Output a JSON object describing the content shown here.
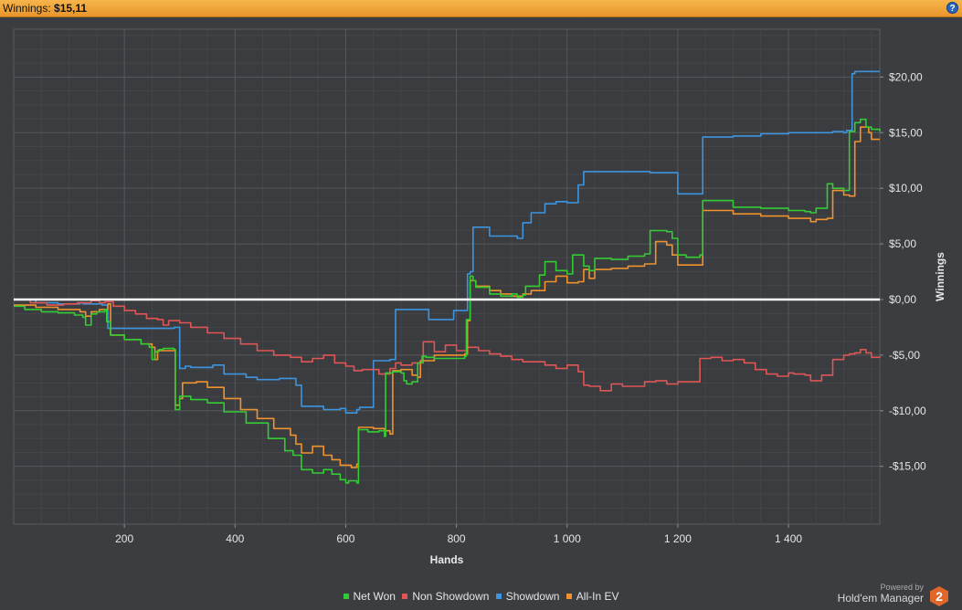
{
  "header": {
    "label": "Winnings:",
    "value": "$15,11",
    "help_icon": "help-icon"
  },
  "brand": {
    "powered_by": "Powered by",
    "name": "Hold'em Manager",
    "logo_number": "2"
  },
  "colors": {
    "background": "#3b3d40",
    "net_won": "#33cc33",
    "non_showdown": "#e05555",
    "showdown": "#3d95e0",
    "all_in_ev": "#f0922e",
    "zero_line": "#ffffff"
  },
  "chart_data": {
    "type": "line",
    "xlabel": "Hands",
    "ylabel": "Winnings",
    "xlim": [
      0,
      1565
    ],
    "ylim": [
      -20.2,
      24.3
    ],
    "xticks": [
      200,
      400,
      600,
      800,
      1000,
      1200,
      1400
    ],
    "xtick_labels": [
      "200",
      "400",
      "600",
      "800",
      "1 000",
      "1 200",
      "1 400"
    ],
    "yticks": [
      20,
      15,
      10,
      5,
      0,
      -5,
      -10,
      -15
    ],
    "ytick_labels": [
      "$20,00",
      "$15,00",
      "$10,00",
      "$5,00",
      "$0,00",
      "-$5,00",
      "-$10,00",
      "-$15,00"
    ],
    "legend_position": "bottom",
    "grid": true,
    "series": [
      {
        "name": "Net Won",
        "x": [
          0,
          20,
          50,
          80,
          110,
          125,
          130,
          140,
          150,
          165,
          168,
          175,
          200,
          230,
          245,
          250,
          255,
          262,
          270,
          290,
          292,
          300,
          320,
          350,
          380,
          420,
          460,
          490,
          505,
          520,
          540,
          560,
          575,
          590,
          600,
          605,
          620,
          623,
          640,
          660,
          670,
          672,
          685,
          700,
          705,
          710,
          720,
          730,
          738,
          745,
          760,
          790,
          815,
          818,
          825,
          830,
          835,
          860,
          880,
          900,
          910,
          920,
          925,
          950,
          960,
          980,
          1000,
          1010,
          1030,
          1040,
          1050,
          1080,
          1110,
          1140,
          1150,
          1180,
          1190,
          1200,
          1215,
          1240,
          1245,
          1300,
          1350,
          1400,
          1430,
          1440,
          1450,
          1470,
          1480,
          1500,
          1510,
          1520,
          1530,
          1540,
          1550,
          1565
        ],
        "y": [
          -0.6,
          -0.9,
          -1.1,
          -1.2,
          -1.4,
          -1.6,
          -2.3,
          -1.3,
          -1.1,
          -0.9,
          -2.0,
          -3.2,
          -3.6,
          -4.0,
          -4.3,
          -5.4,
          -4.7,
          -4.5,
          -4.4,
          -4.5,
          -9.9,
          -8.7,
          -9.0,
          -9.3,
          -10.1,
          -11.1,
          -12.5,
          -13.6,
          -14.0,
          -15.3,
          -15.6,
          -15.3,
          -15.7,
          -16.2,
          -16.5,
          -16.3,
          -16.5,
          -11.7,
          -11.9,
          -11.8,
          -12.3,
          -6.6,
          -6.5,
          -6.6,
          -7.3,
          -7.6,
          -7.4,
          -5.7,
          -5.1,
          -5.2,
          -5.3,
          -5.3,
          -5.1,
          -1.8,
          2.1,
          1.7,
          1.1,
          0.5,
          0.3,
          0.5,
          0.2,
          0.4,
          1.2,
          2.2,
          3.4,
          2.6,
          2.3,
          4.0,
          3.0,
          2.6,
          3.7,
          3.6,
          3.9,
          4.1,
          6.2,
          6.1,
          5.5,
          4.0,
          3.8,
          4.0,
          8.9,
          8.3,
          8.2,
          8.0,
          7.9,
          7.8,
          8.2,
          10.4,
          10.0,
          9.8,
          15.1,
          15.9,
          16.2,
          15.5,
          15.3,
          15.1
        ]
      },
      {
        "name": "Non Showdown",
        "x": [
          0,
          30,
          60,
          90,
          115,
          140,
          155,
          165,
          180,
          200,
          220,
          240,
          260,
          270,
          280,
          300,
          320,
          350,
          380,
          410,
          440,
          470,
          500,
          520,
          540,
          560,
          580,
          600,
          615,
          630,
          660,
          680,
          690,
          700,
          720,
          740,
          760,
          780,
          800,
          820,
          840,
          860,
          880,
          900,
          920,
          940,
          960,
          980,
          1000,
          1020,
          1030,
          1040,
          1060,
          1080,
          1100,
          1120,
          1140,
          1160,
          1180,
          1200,
          1220,
          1240,
          1260,
          1280,
          1300,
          1320,
          1340,
          1360,
          1380,
          1400,
          1410,
          1430,
          1440,
          1460,
          1480,
          1500,
          1510,
          1520,
          1530,
          1540,
          1550,
          1565
        ],
        "y": [
          0,
          -0.3,
          -0.5,
          -0.4,
          -0.3,
          -0.1,
          -0.3,
          -0.2,
          -0.6,
          -1.0,
          -1.3,
          -1.7,
          -1.8,
          -2.3,
          -1.9,
          -2.1,
          -2.5,
          -3.0,
          -3.5,
          -4.0,
          -4.6,
          -5.0,
          -5.2,
          -5.6,
          -5.3,
          -5.0,
          -5.7,
          -6.0,
          -6.4,
          -6.3,
          -6.7,
          -6.2,
          -5.7,
          -5.9,
          -5.7,
          -3.8,
          -4.7,
          -4.1,
          -4.6,
          -4.3,
          -4.6,
          -4.9,
          -5.1,
          -5.4,
          -5.6,
          -5.6,
          -5.9,
          -6.2,
          -5.9,
          -6.5,
          -7.7,
          -7.8,
          -8.2,
          -7.6,
          -7.8,
          -7.8,
          -7.4,
          -7.3,
          -7.6,
          -7.4,
          -7.4,
          -5.3,
          -5.2,
          -5.5,
          -5.4,
          -5.7,
          -6.3,
          -6.7,
          -6.9,
          -6.6,
          -6.7,
          -6.8,
          -7.3,
          -6.8,
          -5.4,
          -5.0,
          -4.9,
          -4.8,
          -4.5,
          -4.8,
          -5.2,
          -5.1
        ]
      },
      {
        "name": "Showdown",
        "x": [
          0,
          40,
          80,
          120,
          125,
          160,
          170,
          270,
          290,
          300,
          310,
          320,
          360,
          380,
          420,
          440,
          480,
          510,
          520,
          560,
          590,
          600,
          620,
          625,
          650,
          680,
          685,
          690,
          720,
          750,
          780,
          795,
          800,
          820,
          825,
          830,
          860,
          890,
          910,
          920,
          935,
          960,
          980,
          1000,
          1020,
          1030,
          1080,
          1100,
          1150,
          1190,
          1200,
          1240,
          1245,
          1300,
          1350,
          1400,
          1440,
          1480,
          1500,
          1505,
          1515,
          1520,
          1565
        ],
        "y": [
          0,
          -0.3,
          -0.4,
          -0.3,
          -0.4,
          -0.5,
          -2.6,
          -2.6,
          -2.5,
          -6.2,
          -6.0,
          -6.1,
          -5.9,
          -6.7,
          -7.0,
          -7.2,
          -7.1,
          -7.7,
          -9.6,
          -9.9,
          -9.8,
          -10.2,
          -9.9,
          -9.7,
          -5.5,
          -5.4,
          -5.4,
          -0.9,
          -0.9,
          -1.8,
          -1.8,
          -1.0,
          -1.0,
          2.3,
          2.5,
          6.5,
          5.7,
          5.7,
          5.5,
          6.9,
          7.8,
          8.6,
          8.8,
          8.7,
          10.3,
          11.5,
          11.5,
          11.5,
          11.4,
          11.4,
          9.5,
          9.5,
          14.6,
          14.7,
          14.9,
          15.0,
          15.0,
          15.1,
          15.0,
          15.2,
          20.3,
          20.5,
          20.5
        ]
      },
      {
        "name": "All-In EV",
        "x": [
          0,
          40,
          80,
          120,
          130,
          140,
          155,
          170,
          175,
          200,
          230,
          250,
          255,
          260,
          290,
          292,
          300,
          305,
          330,
          350,
          380,
          410,
          440,
          470,
          500,
          510,
          520,
          540,
          560,
          575,
          590,
          610,
          620,
          623,
          650,
          670,
          680,
          685,
          700,
          720,
          730,
          735,
          760,
          790,
          815,
          820,
          825,
          835,
          860,
          880,
          900,
          920,
          935,
          960,
          980,
          1000,
          1020,
          1030,
          1040,
          1050,
          1080,
          1110,
          1140,
          1160,
          1180,
          1190,
          1200,
          1240,
          1245,
          1300,
          1350,
          1400,
          1440,
          1450,
          1470,
          1480,
          1500,
          1510,
          1520,
          1530,
          1545,
          1550,
          1565
        ],
        "y": [
          -0.5,
          -0.7,
          -0.9,
          -1.1,
          -1.5,
          -1.1,
          -0.9,
          -0.4,
          -3.2,
          -3.6,
          -4.0,
          -4.3,
          -5.4,
          -4.6,
          -4.5,
          -9.5,
          -8.9,
          -7.5,
          -7.4,
          -7.9,
          -8.9,
          -9.9,
          -10.7,
          -11.6,
          -12.2,
          -13.0,
          -13.8,
          -13.2,
          -14.0,
          -14.4,
          -14.9,
          -15.1,
          -14.8,
          -11.5,
          -11.6,
          -11.8,
          -12.1,
          -6.4,
          -6.3,
          -6.8,
          -7.0,
          -5.5,
          -5.0,
          -5.0,
          -4.9,
          -1.9,
          1.7,
          1.2,
          0.8,
          0.5,
          0.3,
          0.5,
          0.8,
          1.6,
          2.1,
          1.5,
          1.6,
          2.7,
          1.9,
          2.7,
          2.8,
          3.0,
          3.2,
          5.2,
          4.9,
          4.0,
          3.1,
          3.1,
          8.0,
          7.7,
          7.5,
          7.3,
          7.0,
          7.2,
          7.3,
          9.8,
          9.4,
          9.3,
          14.2,
          15.5,
          15.0,
          14.4,
          14.4
        ]
      }
    ]
  }
}
